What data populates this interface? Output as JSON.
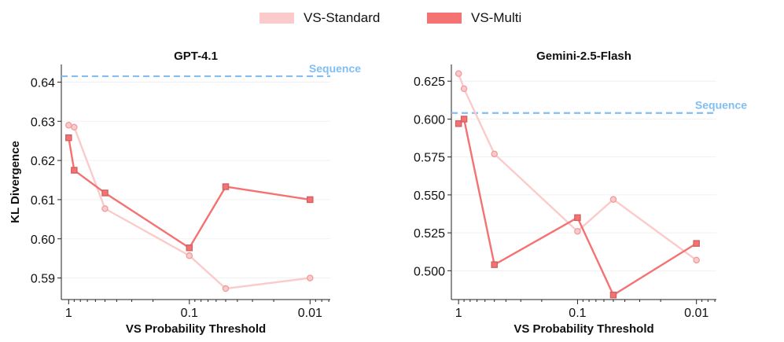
{
  "legend": [
    {
      "label": "VS-Standard",
      "color": "#FBCBCB"
    },
    {
      "label": "VS-Multi",
      "color": "#F47272"
    }
  ],
  "chart_data": [
    {
      "type": "line",
      "title": "GPT-4.1",
      "xlabel": "VS Probability Threshold",
      "ylabel": "KL Divergence",
      "x_scale": "log-reversed",
      "xlim": [
        1.15,
        0.0068
      ],
      "ylim": [
        0.5845,
        0.6445
      ],
      "x_ticks": [
        1,
        0.1,
        0.01
      ],
      "x_tick_labels": [
        "1",
        "0.1",
        "0.01"
      ],
      "y_ticks": [
        0.59,
        0.6,
        0.61,
        0.62,
        0.63,
        0.64
      ],
      "y_tick_labels": [
        "0.59",
        "0.60",
        "0.61",
        "0.62",
        "0.63",
        "0.64"
      ],
      "reference": {
        "label": "Sequence",
        "value": 0.6415,
        "color": "#80BEF3"
      },
      "series": [
        {
          "name": "VS-Standard",
          "color": "#FBCBCB",
          "marker": "circle",
          "x": [
            1.0,
            0.9,
            0.5,
            0.1,
            0.05,
            0.01
          ],
          "y": [
            0.629,
            0.6285,
            0.6077,
            0.5957,
            0.5873,
            0.59
          ]
        },
        {
          "name": "VS-Multi",
          "color": "#F47272",
          "marker": "square",
          "x": [
            1.0,
            0.9,
            0.5,
            0.1,
            0.05,
            0.01
          ],
          "y": [
            0.6258,
            0.6175,
            0.6117,
            0.5977,
            0.6133,
            0.61
          ]
        }
      ]
    },
    {
      "type": "line",
      "title": "Gemini-2.5-Flash",
      "xlabel": "VS Probability Threshold",
      "ylabel": "",
      "x_scale": "log-reversed",
      "xlim": [
        1.15,
        0.0068
      ],
      "ylim": [
        0.481,
        0.636
      ],
      "x_ticks": [
        1,
        0.1,
        0.01
      ],
      "x_tick_labels": [
        "1",
        "0.1",
        "0.01"
      ],
      "y_ticks": [
        0.5,
        0.525,
        0.55,
        0.575,
        0.6,
        0.625
      ],
      "y_tick_labels": [
        "0.500",
        "0.525",
        "0.550",
        "0.575",
        "0.600",
        "0.625"
      ],
      "reference": {
        "label": "Sequence",
        "value": 0.604,
        "color": "#80BEF3"
      },
      "series": [
        {
          "name": "VS-Standard",
          "color": "#FBCBCB",
          "marker": "circle",
          "x": [
            1.0,
            0.9,
            0.5,
            0.1,
            0.05,
            0.01
          ],
          "y": [
            0.63,
            0.62,
            0.577,
            0.526,
            0.547,
            0.507
          ]
        },
        {
          "name": "VS-Multi",
          "color": "#F47272",
          "marker": "square",
          "x": [
            1.0,
            0.9,
            0.5,
            0.1,
            0.05,
            0.01
          ],
          "y": [
            0.597,
            0.6,
            0.504,
            0.535,
            0.484,
            0.518
          ]
        }
      ]
    }
  ]
}
